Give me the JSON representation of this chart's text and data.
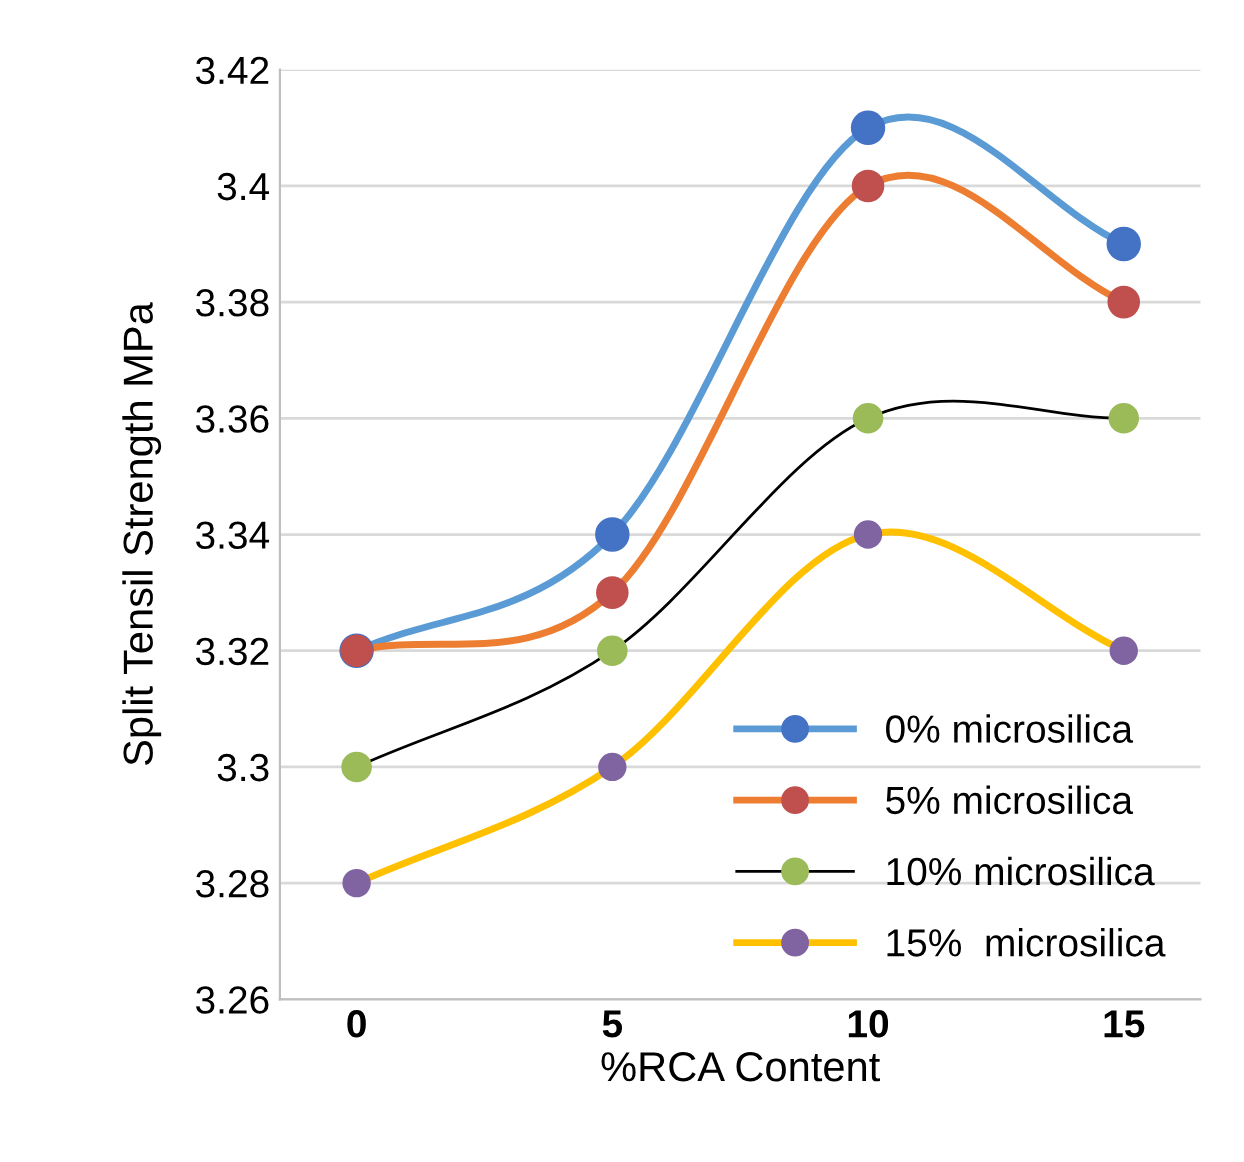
{
  "chart_data": {
    "type": "line",
    "xlabel": "%RCA Content",
    "ylabel": "Split Tensil Strength MPa",
    "categories": [
      "0",
      "5",
      "10",
      "15"
    ],
    "series": [
      {
        "name": "0% microsilica",
        "color": "#5b9bd5",
        "colors": [
          "#4472c4",
          "#4472c4",
          "#4472c4",
          "#4472c4"
        ],
        "values": [
          3.32,
          3.34,
          3.41,
          3.39
        ]
      },
      {
        "name": "5% microsilica",
        "color": "#ed7d31",
        "colors": [
          "#c0504d",
          "#c0504d",
          "#c0504d",
          "#c0504d"
        ],
        "values": [
          3.32,
          3.33,
          3.4,
          3.38
        ]
      },
      {
        "name": "10% microsilica",
        "color": "#000000",
        "colors": [
          "#9bbb59",
          "#9bbb59",
          "#9bbb59",
          "#9bbb59"
        ],
        "values": [
          3.3,
          3.32,
          3.36,
          3.36
        ]
      },
      {
        "name": "15%  microsilica",
        "color": "#ffc000",
        "colors": [
          "#8064a2",
          "#8064a2",
          "#8064a2",
          "#8064a2"
        ],
        "values": [
          3.28,
          3.3,
          3.34,
          3.32
        ]
      }
    ],
    "ylim": [
      3.26,
      3.42
    ],
    "yticks": [
      3.26,
      3.28,
      3.3,
      3.32,
      3.34,
      3.36,
      3.38,
      3.4,
      3.42
    ],
    "grid": "y",
    "legend": "bottom right",
    "marker": "circle",
    "line_style": "solid"
  }
}
